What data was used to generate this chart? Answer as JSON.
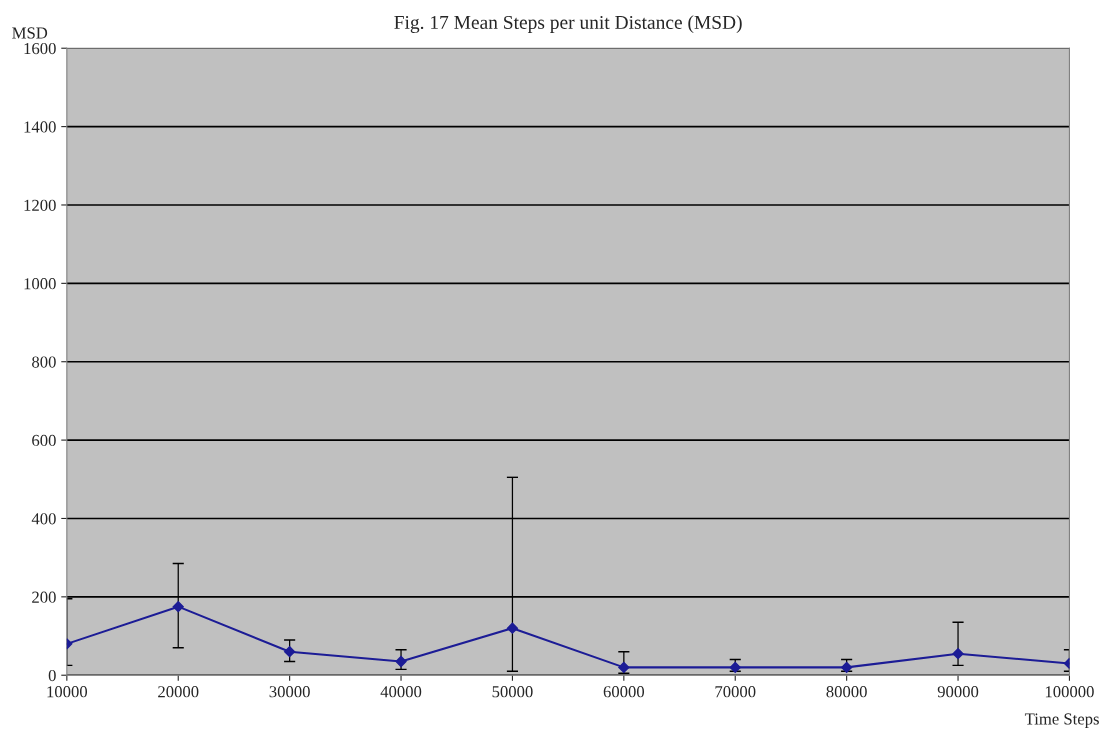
{
  "chart_data": {
    "type": "line",
    "title": "Fig. 17 Mean Steps per unit Distance (MSD)",
    "xlabel": "Time Steps",
    "ylabel": "MSD",
    "x": [
      10000,
      20000,
      30000,
      40000,
      50000,
      60000,
      70000,
      80000,
      90000,
      100000
    ],
    "series": [
      {
        "color": "#1c1c96",
        "values": [
          80,
          175,
          60,
          35,
          120,
          20,
          20,
          20,
          55,
          30
        ],
        "errors": [
          [
            25,
            195
          ],
          [
            70,
            285
          ],
          [
            35,
            90
          ],
          [
            15,
            65
          ],
          [
            10,
            505
          ],
          [
            5,
            60
          ],
          [
            10,
            40
          ],
          [
            10,
            40
          ],
          [
            25,
            135
          ],
          [
            10,
            65
          ]
        ]
      }
    ],
    "xlim": [
      10000,
      100000
    ],
    "xticks": [
      10000,
      20000,
      30000,
      40000,
      50000,
      60000,
      70000,
      80000,
      90000,
      100000
    ],
    "ylim": [
      0,
      1600
    ],
    "yticks": [
      0,
      200,
      400,
      600,
      800,
      1000,
      1200,
      1400,
      1600
    ],
    "grid": "y",
    "marker": "diamond",
    "line_style": "solid"
  }
}
